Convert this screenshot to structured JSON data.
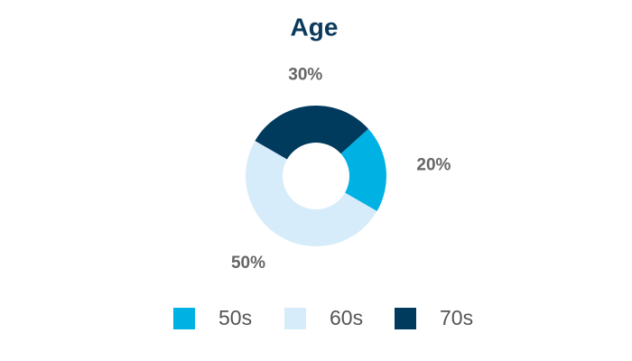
{
  "chart_data": {
    "type": "donut",
    "title": "Age",
    "categories": [
      "50s",
      "60s",
      "70s"
    ],
    "values": [
      20,
      50,
      30
    ],
    "value_labels": [
      "20%",
      "50%",
      "30%"
    ],
    "colors": [
      "#00b2e3",
      "#d7ecfa",
      "#003a5d"
    ],
    "legend": "bottom"
  }
}
